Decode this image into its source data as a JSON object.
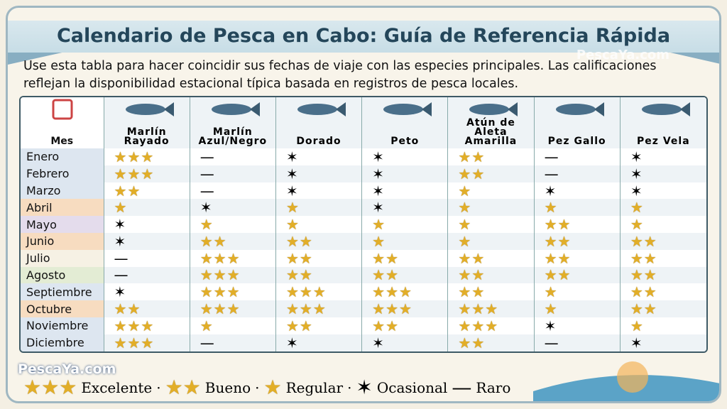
{
  "header": {
    "title": "Calendario de Pesca en Cabo: Guía de Referencia Rápida",
    "brand": "PescaYa.com",
    "subtitle": "Use esta tabla para hacer coincidir sus fechas de viaje con las especies principales. Las calificaciones reflejan la disponibilidad estacional típica basada en registros de pesca locales."
  },
  "table": {
    "columns": [
      "Mes",
      "Marlín Rayado",
      "Marlín Azul/Negro",
      "Dorado",
      "Peto",
      "Atún de Aleta Amarilla",
      "Pez Gallo",
      "Pez Vela"
    ],
    "rows": [
      [
        "Enero",
        "★★★",
        "—",
        "✶",
        "✶",
        "★★",
        "—",
        "✶"
      ],
      [
        "Febrero",
        "★★★",
        "—",
        "✶",
        "✶",
        "★★",
        "—",
        "✶"
      ],
      [
        "Marzo",
        "★★",
        "—",
        "✶",
        "✶",
        "★",
        "✶",
        "✶"
      ],
      [
        "Abril",
        "★",
        "✶",
        "★",
        "✶",
        "★",
        "★",
        "★"
      ],
      [
        "Mayo",
        "✶",
        "★",
        "★",
        "★",
        "★",
        "★★",
        "★"
      ],
      [
        "Junio",
        "✶",
        "★★",
        "★★",
        "★",
        "★",
        "★★",
        "★★"
      ],
      [
        "Julio",
        "—",
        "★★★",
        "★★",
        "★★",
        "★★",
        "★★",
        "★★"
      ],
      [
        "Agosto",
        "—",
        "★★★",
        "★★",
        "★★",
        "★★",
        "★★",
        "★★"
      ],
      [
        "Septiembre",
        "✶",
        "★★★",
        "★★★",
        "★★★",
        "★★",
        "★",
        "★★"
      ],
      [
        "Octubre",
        "★★",
        "★★★",
        "★★★",
        "★★★",
        "★★★",
        "★",
        "★★"
      ],
      [
        "Noviembre",
        "★★★",
        "★",
        "★★",
        "★★",
        "★★★",
        "✶",
        "★"
      ],
      [
        "Diciembre",
        "★★★",
        "—",
        "✶",
        "✶",
        "★★",
        "—",
        "✶"
      ]
    ]
  },
  "legend": {
    "separator": "·",
    "items": [
      {
        "symbol": "★★★",
        "label": "Excelente"
      },
      {
        "symbol": "★★",
        "label": "Bueno"
      },
      {
        "symbol": "★",
        "label": "Regular"
      },
      {
        "symbol": "✶",
        "label": "Ocasional"
      },
      {
        "symbol": "—",
        "label": "Raro"
      }
    ]
  },
  "footer": {
    "brand": "PescaYa.com"
  }
}
